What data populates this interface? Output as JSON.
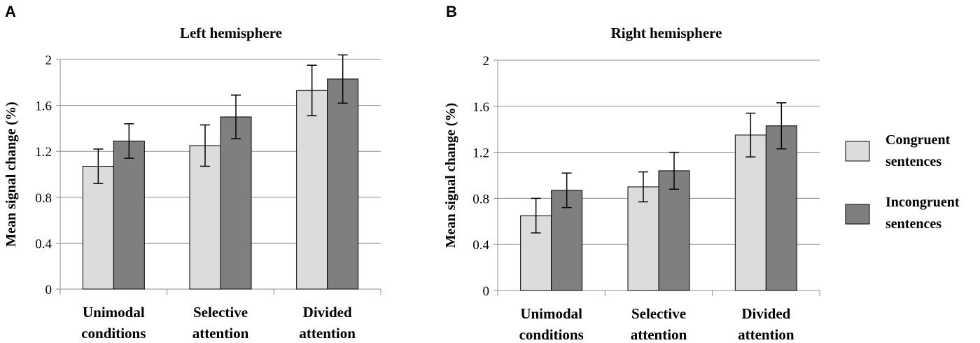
{
  "panel_letters": [
    "A",
    "B"
  ],
  "chart_data": [
    {
      "type": "bar",
      "title": "Left hemisphere",
      "xlabel": "",
      "ylabel": "Mean signal change (%)",
      "ylim": [
        0,
        2
      ],
      "yticks": [
        0,
        0.4,
        0.8,
        1.2,
        1.6,
        2
      ],
      "ytick_labels": [
        "0",
        "0.4",
        "0.8",
        "1.2",
        "1.6",
        "2"
      ],
      "grid": true,
      "categories": [
        [
          "Unimodal",
          "conditions"
        ],
        [
          "Selective",
          "attention"
        ],
        [
          "Divided",
          "attention"
        ]
      ],
      "series": [
        {
          "name": "Congruent sentences",
          "color": "#dcdcdc",
          "values": [
            1.07,
            1.25,
            1.73
          ],
          "errors": [
            0.15,
            0.18,
            0.22
          ]
        },
        {
          "name": "Incongruent sentences",
          "color": "#7f7f7f",
          "values": [
            1.29,
            1.5,
            1.83
          ],
          "errors": [
            0.15,
            0.19,
            0.21
          ]
        }
      ]
    },
    {
      "type": "bar",
      "title": "Right hemisphere",
      "xlabel": "",
      "ylabel": "Mean signal change (%)",
      "ylim": [
        0,
        2
      ],
      "yticks": [
        0,
        0.4,
        0.8,
        1.2,
        1.6,
        2
      ],
      "ytick_labels": [
        "0",
        "0.4",
        "0.8",
        "1.2",
        "1.6",
        "2"
      ],
      "grid": true,
      "categories": [
        [
          "Unimodal",
          "conditions"
        ],
        [
          "Selective",
          "attention"
        ],
        [
          "Divided",
          "attention"
        ]
      ],
      "series": [
        {
          "name": "Congruent sentences",
          "color": "#dcdcdc",
          "values": [
            0.65,
            0.9,
            1.35
          ],
          "errors": [
            0.15,
            0.13,
            0.19
          ]
        },
        {
          "name": "Incongruent sentences",
          "color": "#7f7f7f",
          "values": [
            0.87,
            1.04,
            1.43
          ],
          "errors": [
            0.15,
            0.16,
            0.2
          ]
        }
      ]
    }
  ],
  "legend": {
    "position": "right",
    "items": [
      {
        "lines": [
          "Congruent",
          "sentences"
        ],
        "color": "#dcdcdc"
      },
      {
        "lines": [
          "Incongruent",
          "sentences"
        ],
        "color": "#7f7f7f"
      }
    ]
  }
}
